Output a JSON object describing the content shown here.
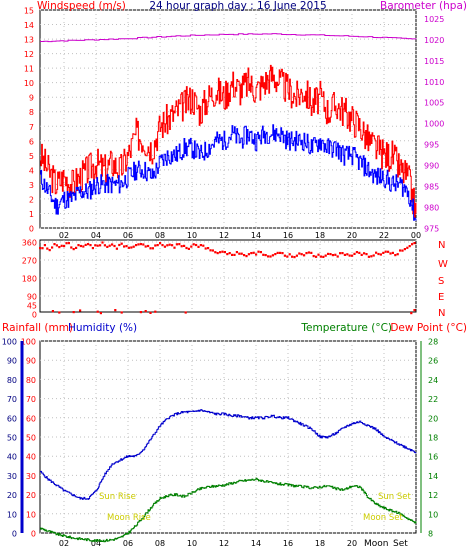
{
  "title": "24 hour graph day : 16 June 2015",
  "colors": {
    "wind_speed": "#ff0000",
    "wind_avg": "#0000ff",
    "barometer": "#cc00cc",
    "direction": "#ff0000",
    "rainfall": "#ff0000",
    "humidity": "#0000cc",
    "temperature": "#008000",
    "dew_point": "#ff0000",
    "sun_moon_labels": "#cccc00",
    "grid": "#c0c0c0"
  },
  "chart_data": [
    {
      "type": "line",
      "panel": "wind_barometer",
      "title": "24 hour graph day : 16 June 2015",
      "left_axis_label": "Windspeed (m/s)",
      "right_axis_label": "Barometer (hpa)",
      "ylim_left": [
        0,
        15
      ],
      "ylim_right": [
        975,
        1027
      ],
      "left_ticks": [
        0,
        1,
        2,
        3,
        4,
        5,
        6,
        7,
        8,
        9,
        10,
        11,
        12,
        13,
        14,
        15
      ],
      "right_ticks": [
        975,
        980,
        985,
        990,
        995,
        1000,
        1005,
        1010,
        1015,
        1020,
        1025
      ],
      "x_ticks": [
        "02",
        "04",
        "06",
        "08",
        "10",
        "12",
        "14",
        "16",
        "18",
        "20",
        "22",
        "00"
      ],
      "x_hours": [
        0.5,
        24
      ],
      "series": [
        {
          "key": "gust",
          "x": [
            0.5,
            1,
            1.5,
            2,
            2.5,
            3,
            3.5,
            4,
            4.5,
            5,
            5.5,
            6,
            6.5,
            7,
            7.5,
            8,
            8.5,
            9,
            9.5,
            10,
            10.5,
            11,
            11.5,
            12,
            12.5,
            13,
            13.5,
            14,
            14.5,
            15,
            15.5,
            16,
            16.5,
            17,
            17.5,
            18,
            18.5,
            19,
            19.5,
            20,
            20.5,
            21,
            21.5,
            22,
            22.5,
            23,
            23.5,
            24
          ],
          "values": [
            5,
            4,
            3,
            3.5,
            3,
            3.5,
            4,
            4.5,
            4,
            4.5,
            4,
            5,
            6.5,
            6,
            5.5,
            7,
            7.5,
            8,
            8.5,
            9,
            8,
            9,
            9.5,
            9,
            10,
            9.5,
            10,
            9.5,
            10,
            10.5,
            10,
            9.5,
            9,
            9.5,
            8.5,
            9,
            8,
            8.5,
            8,
            7.5,
            7,
            6,
            5.5,
            5,
            5,
            4,
            3.5,
            1
          ]
        },
        {
          "key": "average",
          "x": [
            0.5,
            1,
            1.5,
            2,
            2.5,
            3,
            3.5,
            4,
            4.5,
            5,
            5.5,
            6,
            6.5,
            7,
            7.5,
            8,
            8.5,
            9,
            9.5,
            10,
            10.5,
            11,
            11.5,
            12,
            12.5,
            13,
            13.5,
            14,
            14.5,
            15,
            15.5,
            16,
            16.5,
            17,
            17.5,
            18,
            18.5,
            19,
            19.5,
            20,
            20.5,
            21,
            21.5,
            22,
            22.5,
            23,
            23.5,
            24
          ],
          "values": [
            3.5,
            2.5,
            1.5,
            2,
            2,
            2.5,
            2.5,
            3,
            3,
            3,
            3,
            3.5,
            4,
            4,
            3.5,
            4.5,
            5,
            5,
            5.5,
            5.5,
            5,
            5.5,
            6,
            6,
            6.5,
            6,
            6.5,
            6,
            6.5,
            6.5,
            6.5,
            6,
            6,
            6,
            5.5,
            6,
            5.5,
            5.5,
            5,
            5,
            4.5,
            4,
            3.5,
            3.5,
            3,
            3,
            2.5,
            0.5
          ]
        },
        {
          "key": "barometer",
          "x": [
            0.5,
            3,
            6,
            9,
            12,
            15,
            18,
            21,
            24
          ],
          "values": [
            1019.5,
            1019.8,
            1020.2,
            1020.8,
            1021.2,
            1021.3,
            1021.0,
            1020.6,
            1020.0
          ]
        }
      ]
    },
    {
      "type": "scatter",
      "panel": "wind_direction",
      "left_ticks": [
        0,
        45,
        90,
        180,
        270,
        360
      ],
      "ylim": [
        0,
        360
      ],
      "compass_labels": [
        "N",
        "W",
        "S",
        "E",
        "N"
      ],
      "series": [
        {
          "key": "direction",
          "x": [
            0.5,
            0.8,
            1.1,
            1.4,
            1.7,
            2.0,
            2.3,
            2.6,
            2.9,
            3.2,
            3.5,
            3.8,
            4.1,
            4.4,
            4.7,
            5.0,
            5.3,
            5.6,
            5.9,
            6.2,
            6.5,
            6.8,
            7.1,
            7.4,
            7.7,
            8.0,
            8.3,
            8.6,
            8.9,
            9.2,
            9.5,
            9.8,
            10.1,
            10.4,
            10.7,
            11.0,
            11.3,
            11.6,
            11.9,
            12.2,
            12.5,
            12.8,
            13.1,
            13.4,
            13.7,
            14.0,
            14.3,
            14.6,
            14.9,
            15.2,
            15.5,
            15.8,
            16.1,
            16.4,
            16.7,
            17.0,
            17.3,
            17.6,
            17.9,
            18.2,
            18.5,
            18.8,
            19.1,
            19.4,
            19.7,
            20.0,
            20.3,
            20.6,
            20.9,
            21.2,
            21.5,
            21.8,
            22.1,
            22.4,
            22.7,
            23.0,
            23.3,
            23.6,
            23.9
          ],
          "values": [
            330,
            345,
            320,
            350,
            335,
            340,
            355,
            325,
            345,
            338,
            350,
            330,
            342,
            358,
            336,
            348,
            327,
            352,
            340,
            333,
            345,
            350,
            338,
            329,
            343,
            355,
            337,
            347,
            332,
            350,
            341,
            326,
            349,
            336,
            342,
            330,
            318,
            305,
            312,
            300,
            296,
            310,
            302,
            290,
            305,
            298,
            310,
            295,
            288,
            300,
            306,
            292,
            299,
            285,
            303,
            294,
            308,
            290,
            297,
            286,
            301,
            295,
            288,
            305,
            299,
            292,
            310,
            296,
            300,
            289,
            307,
            298,
            312,
            303,
            295,
            318,
            325,
            340,
            355
          ]
        },
        {
          "key": "direction_north",
          "x": [
            1.3,
            1.7,
            2.6,
            3.0,
            4.1,
            4.3,
            5.2,
            5.6,
            6.8,
            7.1,
            7.4,
            7.7,
            9.6,
            23.7,
            23.9
          ],
          "values": [
            15,
            8,
            10,
            18,
            12,
            5,
            20,
            8,
            10,
            15,
            6,
            12,
            8,
            5,
            20
          ]
        }
      ]
    },
    {
      "type": "line",
      "panel": "rain_humidity_temperature",
      "left_axis_label": "Rainfall (mm)",
      "humidity_label": "Humidity (%)",
      "temperature_label": "Temperature (°C)",
      "dew_point_label": "Dew Point (°C)",
      "ylim_left": [
        0,
        100
      ],
      "ylim_right": [
        8,
        28
      ],
      "left_ticks": [
        0,
        10,
        20,
        30,
        40,
        50,
        60,
        70,
        80,
        90,
        100
      ],
      "right_ticks": [
        8,
        10,
        12,
        14,
        16,
        18,
        20,
        22,
        24,
        26,
        28
      ],
      "x_ticks": [
        "02",
        "04",
        "06",
        "08",
        "10",
        "12",
        "14",
        "16",
        "18",
        "20",
        "22",
        "00"
      ],
      "x_ticks_rendered": [
        "02",
        "04",
        "06",
        "08",
        "10",
        "12",
        "14",
        "16",
        "18",
        "20",
        "22",
        "00"
      ],
      "annotations": {
        "sun_rise": "Sun Rise",
        "sun_set": "Sun Set",
        "moon_rise": "Moon Rise",
        "moon_set": "Moon Set",
        "moonrise_marker": "Moon",
        "moonset_marker": "Set"
      },
      "series": [
        {
          "key": "humidity",
          "x": [
            0.5,
            1,
            1.5,
            2,
            2.5,
            3,
            3.5,
            4,
            4.5,
            5,
            5.5,
            6,
            6.5,
            7,
            7.5,
            8,
            8.5,
            9,
            9.5,
            10,
            10.5,
            11,
            11.5,
            12,
            12.5,
            13,
            13.5,
            14,
            14.5,
            15,
            15.5,
            16,
            16.5,
            17,
            17.5,
            18,
            18.5,
            19,
            19.5,
            20,
            20.5,
            21,
            21.5,
            22,
            22.5,
            23,
            23.5,
            24
          ],
          "values": [
            32,
            28,
            25,
            22,
            20,
            18,
            18,
            22,
            30,
            36,
            38,
            40,
            40,
            44,
            50,
            56,
            60,
            62,
            63,
            63,
            64,
            63,
            62,
            62,
            61,
            61,
            60,
            60,
            60,
            61,
            60,
            60,
            58,
            56,
            54,
            50,
            50,
            52,
            55,
            57,
            58,
            56,
            54,
            50,
            48,
            46,
            44,
            42
          ]
        },
        {
          "key": "temperature",
          "x": [
            0.5,
            1,
            1.5,
            2,
            2.5,
            3,
            3.5,
            4,
            4.5,
            5,
            5.5,
            6,
            6.5,
            7,
            7.5,
            8,
            8.5,
            9,
            9.5,
            10,
            10.5,
            11,
            11.5,
            12,
            12.5,
            13,
            13.5,
            14,
            14.5,
            15,
            15.5,
            16,
            16.5,
            17,
            17.5,
            18,
            18.5,
            19,
            19.5,
            20,
            20.5,
            21,
            21.5,
            22,
            22.5,
            23,
            23.5,
            24
          ],
          "values": [
            8.5,
            8.2,
            7.9,
            7.7,
            7.5,
            7.4,
            7.3,
            7.2,
            7.2,
            7.3,
            7.5,
            8.0,
            8.8,
            9.8,
            10.8,
            11.6,
            11.9,
            12.0,
            11.8,
            12.2,
            12.6,
            12.8,
            12.9,
            13.0,
            13.2,
            13.4,
            13.5,
            13.6,
            13.4,
            13.2,
            13.1,
            13.0,
            12.9,
            12.8,
            12.7,
            12.8,
            12.9,
            12.6,
            12.5,
            12.9,
            12.8,
            11.7,
            11.0,
            10.6,
            10.3,
            10.0,
            9.5,
            9.0
          ]
        },
        {
          "key": "dew_point",
          "x": [
            0.5,
            1,
            2,
            3,
            4,
            5,
            6,
            7,
            8,
            9,
            10,
            11,
            12,
            13,
            14,
            15,
            16,
            17,
            18,
            19,
            20,
            21,
            22,
            23,
            24
          ],
          "values": [
            7.4,
            7.3,
            7.2,
            7.1,
            7.0,
            7.0,
            7.2,
            7.5,
            7.6,
            7.7,
            7.8,
            7.9,
            7.8,
            7.8,
            7.7,
            7.6,
            7.6,
            7.5,
            7.5,
            7.4,
            7.4,
            7.3,
            7.3,
            7.2,
            7.2
          ]
        }
      ]
    }
  ]
}
